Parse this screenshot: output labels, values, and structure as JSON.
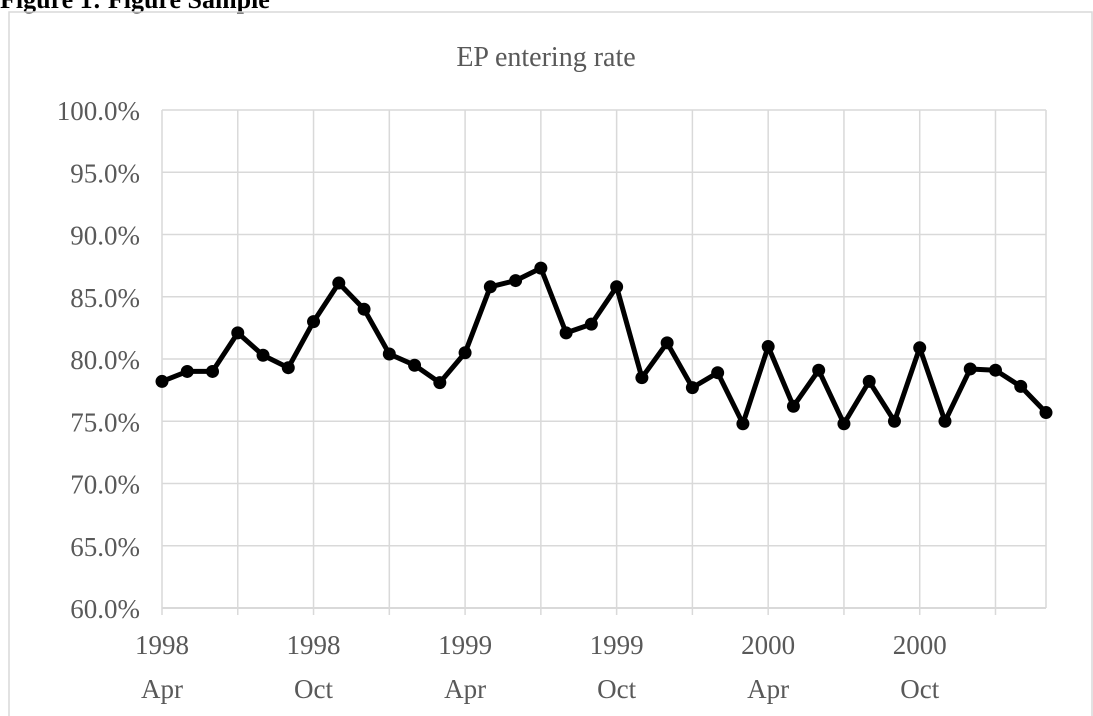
{
  "header": {
    "caption": "Figure 1: Figure Sample"
  },
  "colors": {
    "line": "#000000",
    "grid": "#d9d9d9",
    "text": "#595959",
    "frame": "#d9d9d9"
  },
  "chart_data": {
    "type": "line",
    "title": "EP entering rate",
    "xlabel": "",
    "ylabel": "",
    "ylim": [
      0.6,
      1.0
    ],
    "y_ticks": [
      "100.0%",
      "95.0%",
      "90.0%",
      "85.0%",
      "80.0%",
      "75.0%",
      "70.0%",
      "65.0%",
      "60.0%"
    ],
    "x_tick_labels": [
      {
        "year": "1998",
        "month": "Apr"
      },
      {
        "year": "1998",
        "month": "Oct"
      },
      {
        "year": "1999",
        "month": "Apr"
      },
      {
        "year": "1999",
        "month": "Oct"
      },
      {
        "year": "2000",
        "month": "Apr"
      },
      {
        "year": "2000",
        "month": "Oct"
      }
    ],
    "grid": true,
    "legend": "none",
    "series": [
      {
        "values": [
          0.782,
          0.79,
          0.79,
          0.821,
          0.803,
          0.793,
          0.83,
          0.861,
          0.84,
          0.804,
          0.795,
          0.781,
          0.805,
          0.858,
          0.863,
          0.873,
          0.821,
          0.828,
          0.858,
          0.785,
          0.813,
          0.777,
          0.789,
          0.748,
          0.81,
          0.762,
          0.791,
          0.748,
          0.782,
          0.75,
          0.809,
          0.75,
          0.792,
          0.791,
          0.778,
          0.757
        ]
      }
    ]
  }
}
